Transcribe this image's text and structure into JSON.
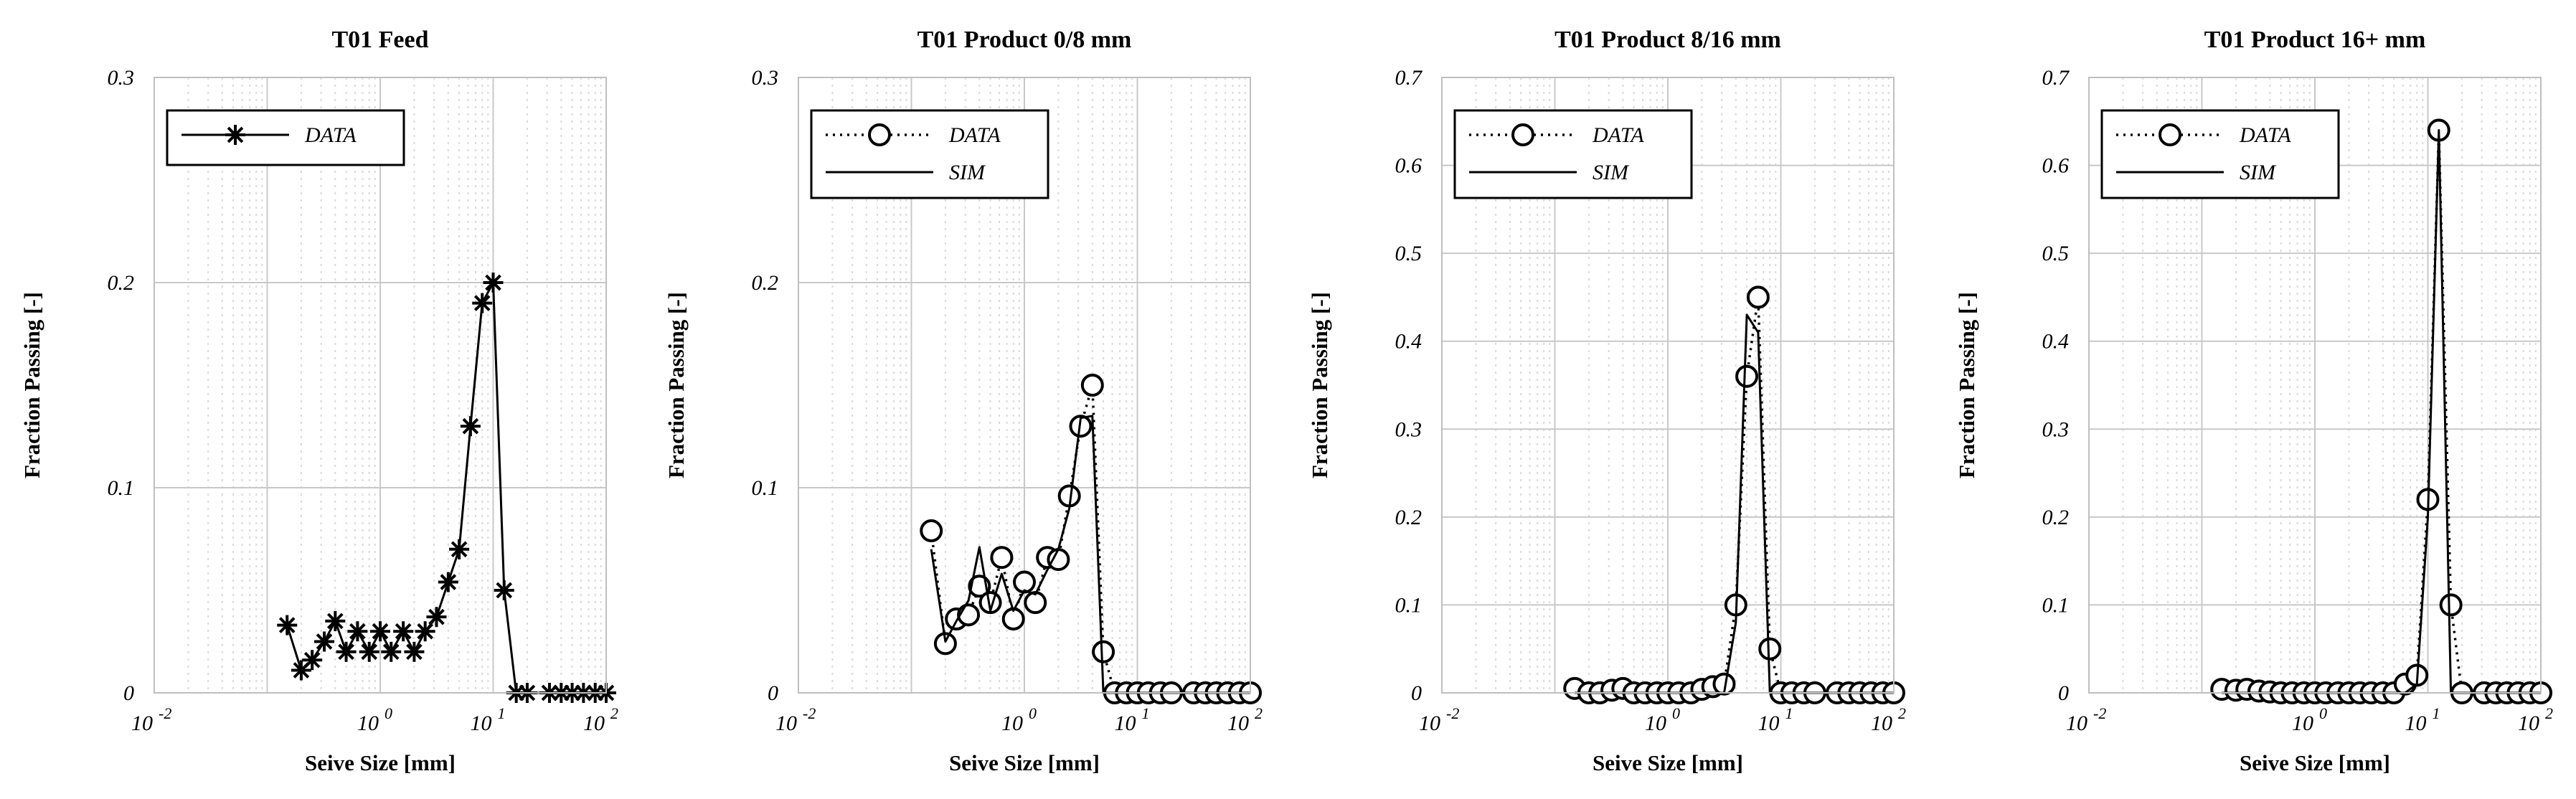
{
  "figure_colors": {
    "ink": "#000000",
    "major_grid": "#c8c8c8",
    "minor_grid": "#d9d9d9",
    "background": "#ffffff"
  },
  "chart_data": [
    {
      "type": "line",
      "title": "T01 Feed",
      "xlabel": "Seive Size [mm]",
      "ylabel": "Fraction Passing [-]",
      "xscale": "log",
      "xlim": [
        0.01,
        100
      ],
      "ylim": [
        0,
        0.3
      ],
      "yticks": [
        "0",
        "0.1",
        "0.2",
        "0.3"
      ],
      "xticks": [
        {
          "base": "10",
          "exp": "-2",
          "value": 0.01
        },
        {
          "base": "10",
          "exp": "0",
          "value": 1
        },
        {
          "base": "10",
          "exp": "1",
          "value": 10
        },
        {
          "base": "10",
          "exp": "2",
          "value": 100
        }
      ],
      "grid": true,
      "legend_position": "top-left",
      "series": [
        {
          "name": "DATA",
          "style": "solid",
          "marker": "asterisk",
          "x": [
            0.15,
            0.2,
            0.25,
            0.32,
            0.4,
            0.5,
            0.63,
            0.8,
            1.0,
            1.25,
            1.6,
            2.0,
            2.5,
            3.15,
            4.0,
            5.0,
            6.3,
            8.0,
            10.0,
            12.5,
            16.0,
            20.0,
            31.5,
            40.0,
            50.0,
            63.0,
            80.0,
            100.0
          ],
          "values": [
            0.033,
            0.011,
            0.016,
            0.025,
            0.035,
            0.02,
            0.03,
            0.02,
            0.03,
            0.02,
            0.03,
            0.02,
            0.03,
            0.037,
            0.054,
            0.07,
            0.13,
            0.19,
            0.2,
            0.05,
            0.0,
            0.0,
            0.0,
            0.0,
            0.0,
            0.0,
            0.0,
            0.0
          ]
        }
      ]
    },
    {
      "type": "line",
      "title": "T01 Product 0/8 mm",
      "xlabel": "Seive Size [mm]",
      "ylabel": "Fraction Passing [-]",
      "xscale": "log",
      "xlim": [
        0.01,
        100
      ],
      "ylim": [
        0,
        0.3
      ],
      "yticks": [
        "0",
        "0.1",
        "0.2",
        "0.3"
      ],
      "xticks": [
        {
          "base": "10",
          "exp": "-2",
          "value": 0.01
        },
        {
          "base": "10",
          "exp": "0",
          "value": 1
        },
        {
          "base": "10",
          "exp": "1",
          "value": 10
        },
        {
          "base": "10",
          "exp": "2",
          "value": 100
        }
      ],
      "grid": true,
      "legend_position": "top-left",
      "series": [
        {
          "name": "DATA",
          "style": "dotted",
          "marker": "circle",
          "x": [
            0.15,
            0.2,
            0.25,
            0.32,
            0.4,
            0.5,
            0.63,
            0.8,
            1.0,
            1.25,
            1.6,
            2.0,
            2.5,
            3.15,
            4.0,
            5.0,
            6.3,
            8.0,
            10.0,
            12.5,
            16.0,
            20.0,
            31.5,
            40.0,
            50.0,
            63.0,
            80.0,
            100.0
          ],
          "values": [
            0.079,
            0.024,
            0.036,
            0.038,
            0.052,
            0.044,
            0.066,
            0.036,
            0.054,
            0.044,
            0.066,
            0.065,
            0.096,
            0.13,
            0.15,
            0.02,
            0.0,
            0.0,
            0.0,
            0.0,
            0.0,
            0.0,
            0.0,
            0.0,
            0.0,
            0.0,
            0.0,
            0.0
          ]
        },
        {
          "name": "SIM",
          "style": "solid",
          "marker": "none",
          "x": [
            0.15,
            0.2,
            0.25,
            0.32,
            0.4,
            0.5,
            0.63,
            0.8,
            1.0,
            1.25,
            1.6,
            2.0,
            2.5,
            3.15,
            4.0,
            5.0,
            6.3,
            8.0,
            10.0,
            12.5,
            16.0,
            20.0,
            31.5,
            40.0,
            50.0,
            63.0,
            80.0,
            100.0
          ],
          "values": [
            0.07,
            0.025,
            0.035,
            0.045,
            0.071,
            0.04,
            0.058,
            0.04,
            0.05,
            0.048,
            0.06,
            0.07,
            0.09,
            0.134,
            0.135,
            0.0,
            0.0,
            0.0,
            0.0,
            0.0,
            0.0,
            0.0,
            0.0,
            0.0,
            0.0,
            0.0,
            0.0,
            0.0
          ]
        }
      ]
    },
    {
      "type": "line",
      "title": "T01 Product 8/16 mm",
      "xlabel": "Seive Size [mm]",
      "ylabel": "Fraction Passing [-]",
      "xscale": "log",
      "xlim": [
        0.01,
        100
      ],
      "ylim": [
        0,
        0.7
      ],
      "yticks": [
        "0",
        "0.1",
        "0.2",
        "0.3",
        "0.4",
        "0.5",
        "0.6",
        "0.7"
      ],
      "xticks": [
        {
          "base": "10",
          "exp": "-2",
          "value": 0.01
        },
        {
          "base": "10",
          "exp": "0",
          "value": 1
        },
        {
          "base": "10",
          "exp": "1",
          "value": 10
        },
        {
          "base": "10",
          "exp": "2",
          "value": 100
        }
      ],
      "grid": true,
      "legend_position": "top-left",
      "series": [
        {
          "name": "DATA",
          "style": "dotted",
          "marker": "circle",
          "x": [
            0.15,
            0.2,
            0.25,
            0.32,
            0.4,
            0.5,
            0.63,
            0.8,
            1.0,
            1.25,
            1.6,
            2.0,
            2.5,
            3.15,
            4.0,
            5.0,
            6.3,
            8.0,
            10.0,
            12.5,
            16.0,
            20.0,
            31.5,
            40.0,
            50.0,
            63.0,
            80.0,
            100.0
          ],
          "values": [
            0.005,
            0.0,
            0.0,
            0.003,
            0.005,
            0.0,
            0.0,
            0.0,
            0.0,
            0.0,
            0.0,
            0.004,
            0.007,
            0.01,
            0.1,
            0.36,
            0.45,
            0.05,
            0.0,
            0.0,
            0.0,
            0.0,
            0.0,
            0.0,
            0.0,
            0.0,
            0.0,
            0.0
          ]
        },
        {
          "name": "SIM",
          "style": "solid",
          "marker": "none",
          "x": [
            0.15,
            0.2,
            0.25,
            0.32,
            0.4,
            0.5,
            0.63,
            0.8,
            1.0,
            1.25,
            1.6,
            2.0,
            2.5,
            3.15,
            4.0,
            5.0,
            6.3,
            8.0,
            10.0,
            12.5,
            16.0,
            20.0,
            31.5,
            40.0,
            50.0,
            63.0,
            80.0,
            100.0
          ],
          "values": [
            0.0,
            0.0,
            0.0,
            0.0,
            0.0,
            0.0,
            0.0,
            0.0,
            0.0,
            0.0,
            0.0,
            0.0,
            0.0,
            0.0,
            0.08,
            0.43,
            0.41,
            0.0,
            0.0,
            0.0,
            0.0,
            0.0,
            0.0,
            0.0,
            0.0,
            0.0,
            0.0,
            0.0
          ]
        }
      ]
    },
    {
      "type": "line",
      "title": "T01 Product 16+ mm",
      "xlabel": "Seive Size [mm]",
      "ylabel": "Fraction Passing [-]",
      "xscale": "log",
      "xlim": [
        0.01,
        100
      ],
      "ylim": [
        0,
        0.7
      ],
      "yticks": [
        "0",
        "0.1",
        "0.2",
        "0.3",
        "0.4",
        "0.5",
        "0.6",
        "0.7"
      ],
      "xticks": [
        {
          "base": "10",
          "exp": "-2",
          "value": 0.01
        },
        {
          "base": "10",
          "exp": "0",
          "value": 1
        },
        {
          "base": "10",
          "exp": "1",
          "value": 10
        },
        {
          "base": "10",
          "exp": "2",
          "value": 100
        }
      ],
      "grid": true,
      "legend_position": "top-left",
      "series": [
        {
          "name": "DATA",
          "style": "dotted",
          "marker": "circle",
          "x": [
            0.15,
            0.2,
            0.25,
            0.32,
            0.4,
            0.5,
            0.63,
            0.8,
            1.0,
            1.25,
            1.6,
            2.0,
            2.5,
            3.15,
            4.0,
            5.0,
            6.3,
            8.0,
            10.0,
            12.5,
            16.0,
            20.0,
            31.5,
            40.0,
            50.0,
            63.0,
            80.0,
            100.0
          ],
          "values": [
            0.004,
            0.003,
            0.004,
            0.002,
            0.001,
            0.0,
            0.0,
            0.0,
            0.0,
            0.0,
            0.0,
            0.0,
            0.0,
            0.0,
            0.0,
            0.0,
            0.01,
            0.02,
            0.22,
            0.64,
            0.1,
            0.0,
            0.0,
            0.0,
            0.0,
            0.0,
            0.0,
            0.0
          ]
        },
        {
          "name": "SIM",
          "style": "solid",
          "marker": "none",
          "x": [
            0.15,
            0.2,
            0.25,
            0.32,
            0.4,
            0.5,
            0.63,
            0.8,
            1.0,
            1.25,
            1.6,
            2.0,
            2.5,
            3.15,
            4.0,
            5.0,
            6.3,
            8.0,
            10.0,
            12.5,
            16.0,
            20.0,
            31.5,
            40.0,
            50.0,
            63.0,
            80.0,
            100.0
          ],
          "values": [
            0.0,
            0.0,
            0.0,
            0.0,
            0.0,
            0.0,
            0.0,
            0.0,
            0.0,
            0.0,
            0.0,
            0.0,
            0.0,
            0.0,
            0.0,
            0.0,
            0.0,
            0.01,
            0.2,
            0.64,
            0.0,
            0.0,
            0.0,
            0.0,
            0.0,
            0.0,
            0.0,
            0.0
          ]
        }
      ]
    }
  ]
}
